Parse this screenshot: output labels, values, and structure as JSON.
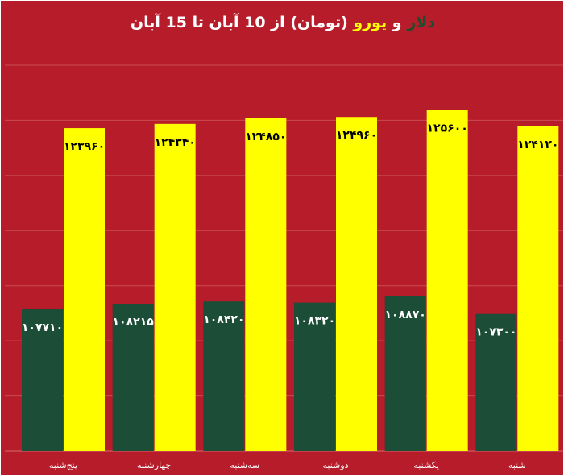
{
  "chart_data": {
    "type": "bar",
    "title_parts": [
      {
        "text": "دلار",
        "color": "dollar"
      },
      {
        "text": " و ",
        "color": "white"
      },
      {
        "text": "یورو",
        "color": "euro"
      },
      {
        "text": " (تومان) از 10 آبان تا 15 آبان",
        "color": "white"
      }
    ],
    "categories": [
      "پنج‌شنبه",
      "چهارشنبه",
      "سه‌شنبه",
      "دوشنبه",
      "یکشنبه",
      "شنبه"
    ],
    "series": [
      {
        "values": [
          10771,
          10821.5,
          10842,
          10832,
          10887,
          10730
        ],
        "labels": [
          "۱۰۷۷۱۰",
          "۱۰۸۲۱۵",
          "۱۰۸۴۲۰",
          "۱۰۸۳۲۰",
          "۱۰۸۸۷۰",
          "۱۰۷۳۰۰"
        ],
        "color": "#1b4d37"
      },
      {
        "values": [
          12396,
          12434,
          12485,
          12496,
          12560,
          12412
        ],
        "labels": [
          "۱۲۳۹۶۰",
          "۱۲۴۳۴۰",
          "۱۲۴۸۵۰",
          "۱۲۴۹۶۰",
          "۱۲۵۶۰۰",
          "۱۲۴۱۲۰"
        ],
        "color": "#ffff00"
      }
    ],
    "xlabel": "",
    "ylabel": "",
    "ylim": [
      9500,
      12960
    ],
    "grid": true,
    "legend": "none"
  },
  "colors": {
    "background": "#b71c2a",
    "dollar": "#1c4d2e",
    "euro": "#ffff00",
    "white": "#ffffff"
  }
}
